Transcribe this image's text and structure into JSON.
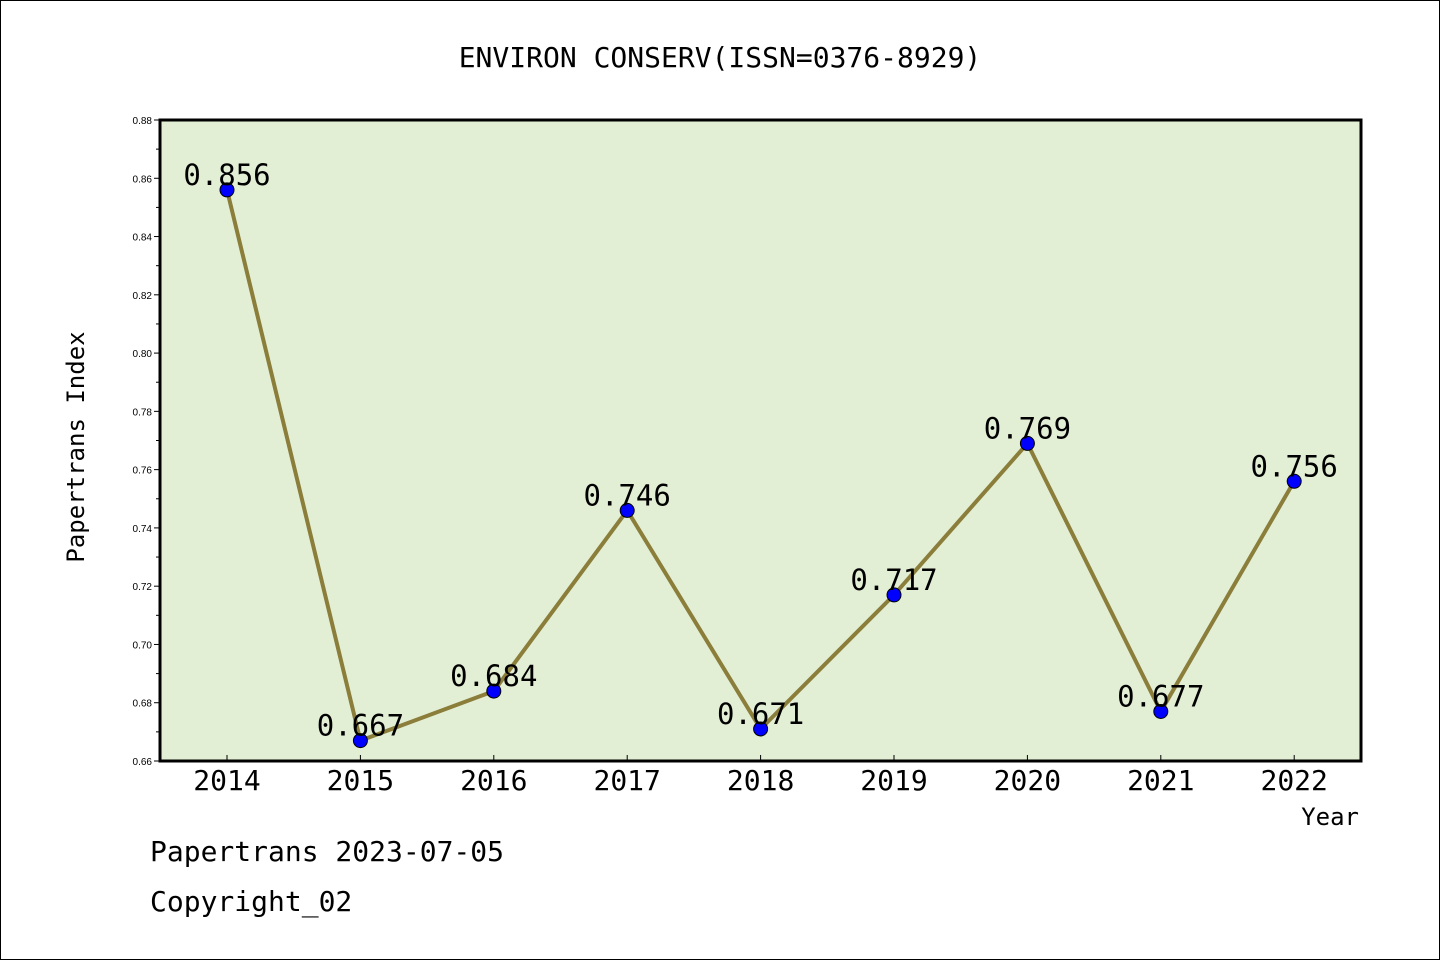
{
  "chart_data": {
    "type": "line",
    "title": "ENVIRON CONSERV(ISSN=0376-8929)",
    "xlabel": "Year",
    "ylabel": "Papertrans Index",
    "categories": [
      "2014",
      "2015",
      "2016",
      "2017",
      "2018",
      "2019",
      "2020",
      "2021",
      "2022"
    ],
    "series": [
      {
        "values": [
          0.856,
          0.667,
          0.684,
          0.746,
          0.671,
          0.717,
          0.769,
          0.677,
          0.756
        ],
        "labels": [
          "0.856",
          "0.667",
          "0.684",
          "0.746",
          "0.671",
          "0.717",
          "0.769",
          "0.677",
          "0.756"
        ]
      }
    ],
    "ylim": [
      0.66,
      0.88
    ],
    "yticks": [
      "0.66",
      "0.68",
      "0.70",
      "0.72",
      "0.74",
      "0.76",
      "0.78",
      "0.80",
      "0.82",
      "0.84",
      "0.86",
      "0.88"
    ],
    "grid": false,
    "colors": {
      "plot_background": "#e2efd5",
      "line": "#8b7d3a",
      "marker": "#0000ff"
    }
  },
  "footer": {
    "date_text": "Papertrans 2023-07-05",
    "copyright_text": "Copyright_02"
  }
}
